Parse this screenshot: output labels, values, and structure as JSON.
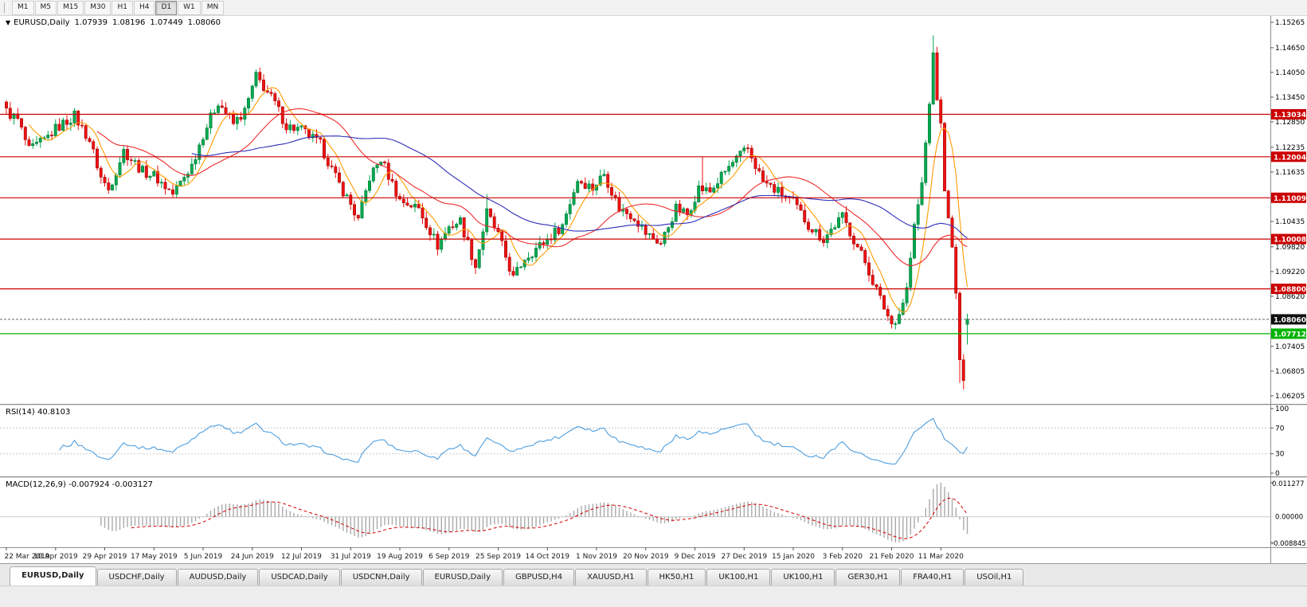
{
  "toolbar": {
    "buttons": [
      {
        "label": "M1",
        "active": false
      },
      {
        "label": "M5",
        "active": false
      },
      {
        "label": "M15",
        "active": false
      },
      {
        "label": "M30",
        "active": false
      },
      {
        "label": "H1",
        "active": false
      },
      {
        "label": "H4",
        "active": false
      },
      {
        "label": "D1",
        "active": true
      },
      {
        "label": "W1",
        "active": false
      },
      {
        "label": "MN",
        "active": false
      }
    ]
  },
  "chart": {
    "header": {
      "dropdown": "▼",
      "symbol": "EURUSD,Daily",
      "open": "1.07939",
      "high": "1.08196",
      "low": "1.07449",
      "close": "1.08060"
    },
    "price_max": 1.1542,
    "price_min": 1.0601,
    "y_ticks": [
      "1.15265",
      "1.14650",
      "1.14050",
      "1.13450",
      "1.12850",
      "1.12235",
      "1.11635",
      "1.10435",
      "1.09820",
      "1.09220",
      "1.08620",
      "1.07405",
      "1.06805",
      "1.06205"
    ],
    "hlines": [
      {
        "price": 1.13034,
        "label": "1.13034",
        "color": "#cc0000"
      },
      {
        "price": 1.12004,
        "label": "1.12004",
        "color": "#cc0000"
      },
      {
        "price": 1.11009,
        "label": "1.11009",
        "color": "#cc0000"
      },
      {
        "price": 1.10008,
        "label": "1.10008",
        "color": "#cc0000"
      },
      {
        "price": 1.088,
        "label": "1.08800",
        "color": "#cc0000"
      },
      {
        "price": 1.07712,
        "label": "1.07712",
        "color": "#00b300"
      }
    ],
    "bid_line": {
      "price": 1.0806,
      "label": "1.08060"
    },
    "x_labels": [
      "22 Mar 2019",
      "10 Apr 2019",
      "29 Apr 2019",
      "17 May 2019",
      "5 Jun 2019",
      "24 Jun 2019",
      "12 Jul 2019",
      "31 Jul 2019",
      "19 Aug 2019",
      "6 Sep 2019",
      "25 Sep 2019",
      "14 Oct 2019",
      "1 Nov 2019",
      "20 Nov 2019",
      "9 Dec 2019",
      "27 Dec 2019",
      "15 Jan 2020",
      "3 Feb 2020",
      "21 Feb 2020",
      "11 Mar 2020"
    ]
  },
  "rsi": {
    "label": "RSI(14) 40.8103",
    "ticks": [
      "100",
      "70",
      "30",
      "0"
    ],
    "dashed_levels": [
      70,
      30
    ]
  },
  "macd": {
    "label": "MACD(12,26,9) -0.007924 -0.003127",
    "ticks": [
      "0.011277",
      "0.00000",
      "-0.008845"
    ]
  },
  "tabs": [
    {
      "label": "EURUSD,Daily",
      "active": true
    },
    {
      "label": "USDCHF,Daily",
      "active": false
    },
    {
      "label": "AUDUSD,Daily",
      "active": false
    },
    {
      "label": "USDCAD,Daily",
      "active": false
    },
    {
      "label": "USDCNH,Daily",
      "active": false
    },
    {
      "label": "EURUSD,Daily",
      "active": false
    },
    {
      "label": "GBPUSD,H4",
      "active": false
    },
    {
      "label": "XAUUSD,H1",
      "active": false
    },
    {
      "label": "HK50,H1",
      "active": false
    },
    {
      "label": "UK100,H1",
      "active": false
    },
    {
      "label": "UK100,H1",
      "active": false
    },
    {
      "label": "GER30,H1",
      "active": false
    },
    {
      "label": "FRA40,H1",
      "active": false
    },
    {
      "label": "USOil,H1",
      "active": false
    }
  ],
  "colors": {
    "candle_up": "#00a94f",
    "candle_up_border": "#006a30",
    "candle_down": "#ee1111",
    "candle_down_border": "#8f0000",
    "rsi": "#4f9ede",
    "macd_hist": "#a9a9a9",
    "macd_signal": "#d40000",
    "support_red": "#cc0000",
    "support_green": "#00b300"
  },
  "chart_data": {
    "type": "candlestick",
    "symbol": "EURUSD",
    "timeframe": "Daily",
    "count": 255,
    "label_start": 0,
    "label_step": 13,
    "ylim": [
      1.0601,
      1.1542
    ],
    "close_anchors": [
      [
        0,
        1.131
      ],
      [
        3,
        1.129
      ],
      [
        6,
        1.1215
      ],
      [
        10,
        1.124
      ],
      [
        13,
        1.1268
      ],
      [
        18,
        1.13
      ],
      [
        22,
        1.124
      ],
      [
        25,
        1.115
      ],
      [
        27,
        1.112
      ],
      [
        31,
        1.1215
      ],
      [
        36,
        1.1165
      ],
      [
        39,
        1.1155
      ],
      [
        44,
        1.111
      ],
      [
        49,
        1.118
      ],
      [
        52,
        1.1255
      ],
      [
        56,
        1.1335
      ],
      [
        60,
        1.128
      ],
      [
        63,
        1.131
      ],
      [
        66,
        1.1395
      ],
      [
        68,
        1.137
      ],
      [
        71,
        1.133
      ],
      [
        74,
        1.1275
      ],
      [
        78,
        1.1265
      ],
      [
        83,
        1.123
      ],
      [
        87,
        1.115
      ],
      [
        91,
        1.1085
      ],
      [
        93,
        1.1045
      ],
      [
        96,
        1.115
      ],
      [
        99,
        1.1195
      ],
      [
        104,
        1.1095
      ],
      [
        109,
        1.1075
      ],
      [
        114,
        1.0985
      ],
      [
        117,
        1.103
      ],
      [
        120,
        1.1045
      ],
      [
        124,
        1.0935
      ],
      [
        127,
        1.1065
      ],
      [
        130,
        1.101
      ],
      [
        134,
        1.0905
      ],
      [
        137,
        1.0955
      ],
      [
        141,
        1.0985
      ],
      [
        143,
        1.1
      ],
      [
        147,
        1.1035
      ],
      [
        151,
        1.1145
      ],
      [
        155,
        1.1125
      ],
      [
        158,
        1.116
      ],
      [
        162,
        1.1075
      ],
      [
        166,
        1.1055
      ],
      [
        169,
        1.1015
      ],
      [
        173,
        1.099
      ],
      [
        177,
        1.1075
      ],
      [
        180,
        1.106
      ],
      [
        183,
        1.1125
      ],
      [
        186,
        1.1115
      ],
      [
        190,
        1.1165
      ],
      [
        193,
        1.1195
      ],
      [
        196,
        1.122
      ],
      [
        200,
        1.114
      ],
      [
        204,
        1.1115
      ],
      [
        208,
        1.109
      ],
      [
        212,
        1.1035
      ],
      [
        216,
        1.1
      ],
      [
        219,
        1.1035
      ],
      [
        221,
        1.1055
      ],
      [
        224,
        1.1
      ],
      [
        227,
        1.0945
      ],
      [
        231,
        1.0855
      ],
      [
        234,
        1.0795
      ],
      [
        236,
        1.082
      ],
      [
        238,
        1.088
      ],
      [
        240,
        1.103
      ],
      [
        242,
        1.1135
      ],
      [
        244,
        1.133
      ],
      [
        245,
        1.145
      ],
      [
        246,
        1.134
      ],
      [
        247,
        1.128
      ],
      [
        248,
        1.112
      ],
      [
        249,
        1.105
      ],
      [
        250,
        1.098
      ],
      [
        251,
        1.087
      ],
      [
        252,
        1.0705
      ],
      [
        253,
        1.066
      ],
      [
        254,
        1.0806
      ]
    ],
    "wick_overrides": [
      {
        "i": 66,
        "high": 1.1412
      },
      {
        "i": 127,
        "high": 1.111
      },
      {
        "i": 184,
        "high": 1.1199
      },
      {
        "i": 245,
        "high": 1.1495
      },
      {
        "i": 252,
        "low": 1.0652
      },
      {
        "i": 253,
        "low": 1.0636
      }
    ],
    "last_candle": {
      "open": 1.07939,
      "high": 1.08196,
      "low": 1.07449,
      "close": 1.0806
    },
    "moving_averages": [
      {
        "period": 7,
        "color": "#ff9d00"
      },
      {
        "period": 25,
        "color": "#ee2c2c"
      },
      {
        "period": 50,
        "color": "#2e2eb8"
      }
    ],
    "rsi_period": 14,
    "rsi_last": 40.8103,
    "macd_params": [
      12,
      26,
      9
    ],
    "macd_last": -0.007924,
    "macd_signal_last": -0.003127,
    "horizontal_levels": [
      1.13034,
      1.12004,
      1.11009,
      1.10008,
      1.088,
      1.07712
    ],
    "current_price": 1.0806
  }
}
